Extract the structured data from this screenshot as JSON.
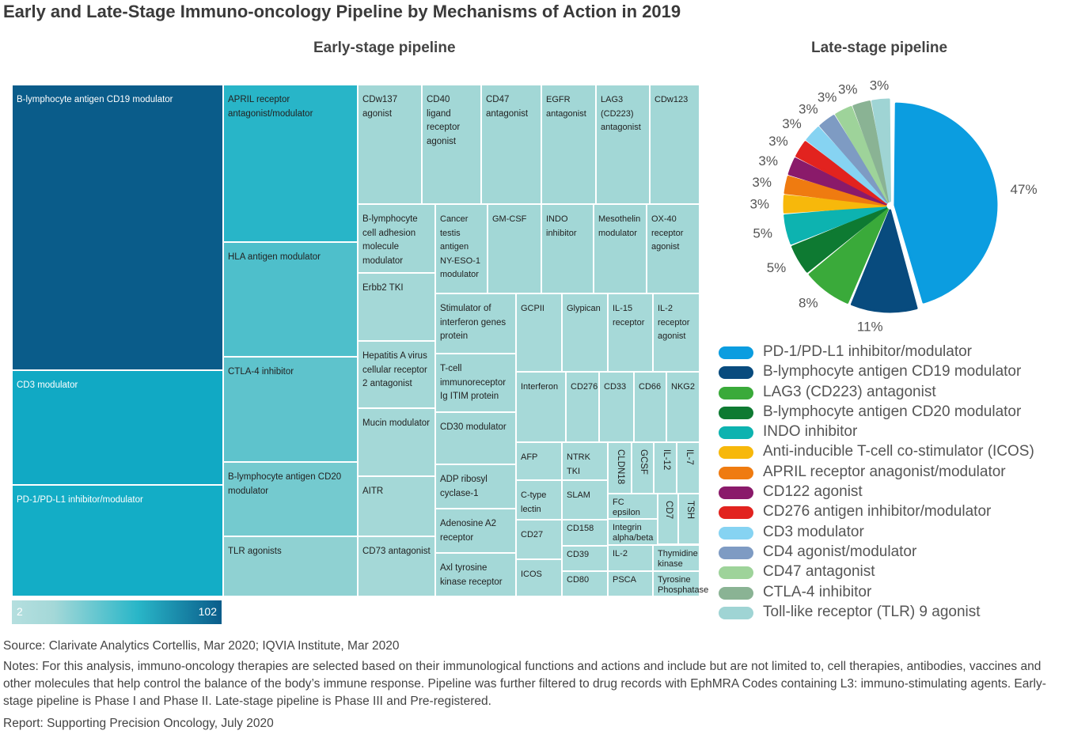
{
  "title": "Early and Late-Stage Immuno-oncology Pipeline by Mechanisms of Action in 2019",
  "early_title": "Early-stage pipeline",
  "late_title": "Late-stage pipeline",
  "scale": {
    "min": "2",
    "max": "102"
  },
  "chart_data": [
    {
      "type": "treemap",
      "title": "Early-stage pipeline",
      "items": [
        "B-lymphocyte antigen CD19 modulator",
        "CD3 modulator",
        "PD-1/PD-L1 inhibitor/modulator",
        "APRIL receptor antagonist/modulator",
        "HLA antigen modulator",
        "CTLA-4 inhibitor",
        "B-lymphocyte antigen CD20 modulator",
        "TLR agonists",
        "CDw137 agonist",
        "CD40 ligand receptor agonist",
        "CD47 antagonist",
        "EGFR antagonist",
        "LAG3 (CD223) antagonist",
        "CDw123",
        "B-lymphocyte cell adhesion molecule modulator",
        "Cancer testis antigen NY-ESO-1 modulator",
        "GM-CSF",
        "INDO inhibitor",
        "Mesothelin modulator",
        "OX-40 receptor agonist",
        "Erbb2 TKI",
        "Hepatitis A virus cellular receptor 2 antagonist",
        "Mucin modulator",
        "AITR",
        "CD73 antagonist",
        "Stimulator of interferon genes protein",
        "T-cell immunoreceptor Ig ITIM protein",
        "CD30 modulator",
        "ADP ribosyl cyclase-1",
        "Adenosine A2 receptor",
        "Axl tyrosine kinase receptor",
        "GCPII",
        "Glypican",
        "IL-15 receptor",
        "IL-2 receptor agonist",
        "Interferon",
        "CD276",
        "CD33",
        "CD66",
        "NKG2",
        "AFP",
        "NTRK TKI",
        "CLDN18",
        "GCSF",
        "IL-12",
        "IL-7",
        "C-type lectin",
        "SLAM",
        "FC epsilon",
        "Integrin alpha/beta",
        "CD7",
        "TSH",
        "CD27",
        "CD158",
        "ICOS",
        "CD39",
        "IL-2",
        "Thymidine kinase",
        "CD80",
        "PSCA",
        "Tyrosine Phosphatase"
      ],
      "color_scale": {
        "min": 2,
        "max": 102
      }
    },
    {
      "type": "pie",
      "title": "Late-stage pipeline",
      "categories": [
        "PD-1/PD-L1 inhibitor/modulator",
        "B-lymphocyte antigen CD19 modulator",
        "LAG3 (CD223) antagonist",
        "B-lymphocyte antigen CD20 modulator",
        "INDO inhibitor",
        "Anti-inducible T-cell co-stimulator (ICOS)",
        "APRIL receptor anagonist/modulator",
        "CD122 agonist",
        "CD276 antigen inhibitor/modulator",
        "CD3 modulator",
        "CD4 agonist/modulator",
        "CD47 antagonist",
        "CTLA-4 inhibitor",
        "Toll-like receptor (TLR) 9 agonist"
      ],
      "values": [
        47,
        11,
        8,
        5,
        5,
        3,
        3,
        3,
        3,
        3,
        3,
        3,
        3,
        3
      ],
      "value_labels": [
        "47%",
        "11%",
        "8%",
        "5%",
        "5%",
        "3%",
        "3%",
        "3%",
        "3%",
        "3%",
        "3%",
        "3%",
        "3%",
        "3%"
      ],
      "colors": [
        "#0b9de0",
        "#084b7e",
        "#3aaa3a",
        "#0e7a32",
        "#0db3b0",
        "#f7b80b",
        "#ef7b10",
        "#8a1a6a",
        "#e2231f",
        "#86d3f2",
        "#7e9bc3",
        "#9ed39a",
        "#8ab394",
        "#9fd4d4"
      ],
      "legend": "bottom"
    }
  ],
  "notes": {
    "source": "Source: Clarivate Analytics Cortellis, Mar 2020; IQVIA Institute, Mar 2020",
    "notes": "Notes: For this analysis, immuno-oncology therapies are selected based on their immunological functions and actions and include but are not limited to, cell therapies, antibodies, vaccines and other molecules that help control the balance of the body’s immune response. Pipeline was further filtered to drug records with EphMRA Codes containing L3: immuno-stimulating agents. Early-stage pipeline is Phase I and Phase II. Late-stage pipeline is Phase III and Pre-registered.",
    "report": "Report: Supporting Precision Oncology, July 2020"
  }
}
